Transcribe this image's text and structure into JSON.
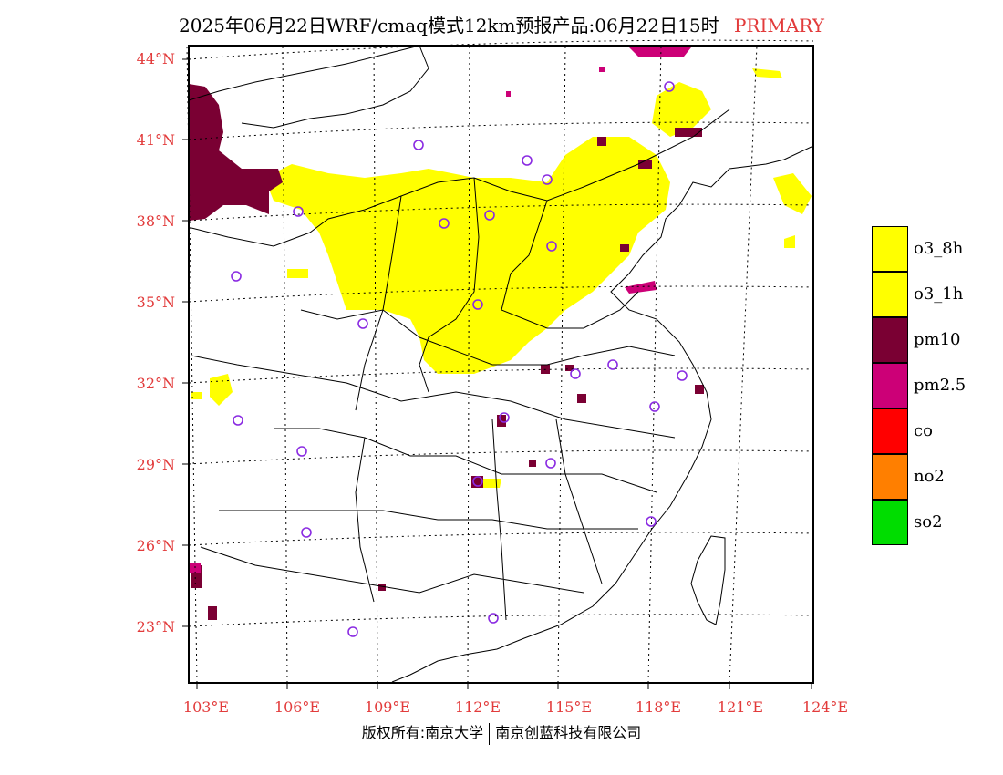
{
  "header": {
    "title": "2025年06月22日WRF/cmaq模式12km预报产品:06月22日15时",
    "tag": "PRIMARY"
  },
  "axes": {
    "lat_labels": [
      "44°N",
      "41°N",
      "38°N",
      "35°N",
      "32°N",
      "29°N",
      "26°N",
      "23°N"
    ],
    "lon_labels": [
      "103°E",
      "106°E",
      "109°E",
      "112°E",
      "115°E",
      "118°E",
      "121°E",
      "124°E"
    ]
  },
  "legend": [
    {
      "label": "o3_8h",
      "color": "#ffff00"
    },
    {
      "label": "o3_1h",
      "color": "#ffff00"
    },
    {
      "label": "pm10",
      "color": "#7a0033"
    },
    {
      "label": "pm2.5",
      "color": "#cc0077"
    },
    {
      "label": "co",
      "color": "#ff0000"
    },
    {
      "label": "no2",
      "color": "#ff7f00"
    },
    {
      "label": "so2",
      "color": "#00dd00"
    }
  ],
  "footer": {
    "left": "版权所有:南京大学",
    "right": "南京创蓝科技有限公司"
  },
  "colors": {
    "axis_label": "#e23b3b",
    "station_marker": "#8a2be2"
  }
}
